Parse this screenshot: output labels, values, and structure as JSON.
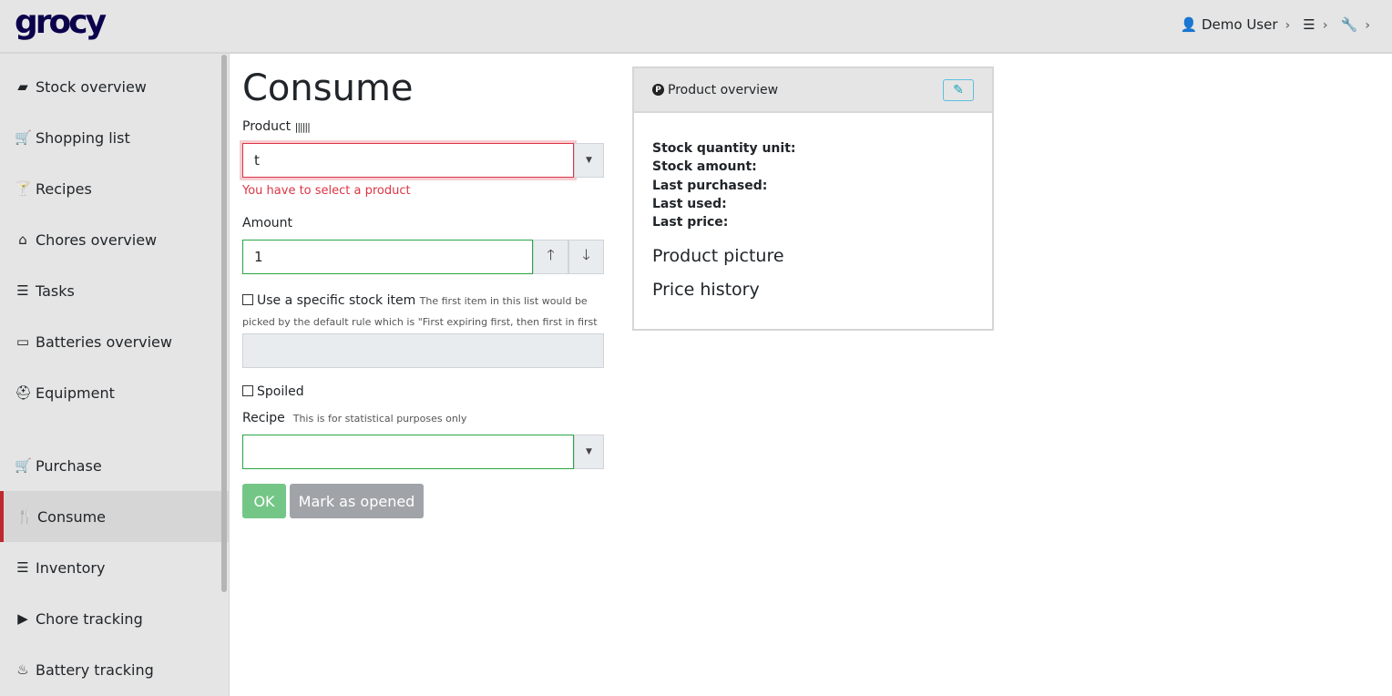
{
  "header": {
    "logo": "grocy",
    "user": "Demo User"
  },
  "sidebar": {
    "items": [
      {
        "label": "Stock overview",
        "icon": "box-icon",
        "glyph": "▰"
      },
      {
        "label": "Shopping list",
        "icon": "cart-icon",
        "glyph": "🛒"
      },
      {
        "label": "Recipes",
        "icon": "cocktail-icon",
        "glyph": "🍸"
      },
      {
        "label": "Chores overview",
        "icon": "home-icon",
        "glyph": "⌂"
      },
      {
        "label": "Tasks",
        "icon": "tasks-icon",
        "glyph": "☰"
      },
      {
        "label": "Batteries overview",
        "icon": "battery-icon",
        "glyph": "▭"
      },
      {
        "label": "Equipment",
        "icon": "toolbox-icon",
        "glyph": "⛑"
      },
      {
        "label": "Purchase",
        "icon": "cart-icon",
        "glyph": "🛒"
      },
      {
        "label": "Consume",
        "icon": "utensils-icon",
        "glyph": "🍴"
      },
      {
        "label": "Inventory",
        "icon": "list-icon",
        "glyph": "☰"
      },
      {
        "label": "Chore tracking",
        "icon": "play-icon",
        "glyph": "▶"
      },
      {
        "label": "Battery tracking",
        "icon": "fire-icon",
        "glyph": "♨"
      }
    ],
    "active": "Consume"
  },
  "main": {
    "title": "Consume",
    "product_label": "Product",
    "product_value": "t",
    "product_error": "You have to select a product",
    "amount_label": "Amount",
    "amount_value": "1",
    "specific_label": "Use a specific stock item",
    "specific_hint": "The first item in this list would be picked by the default rule which is \"First expiring first, then first in first out\"",
    "spoiled_label": "Spoiled",
    "recipe_label": "Recipe",
    "recipe_hint": "This is for statistical purposes only",
    "ok_label": "OK",
    "opened_label": "Mark as opened"
  },
  "card": {
    "title": "Product overview",
    "fields": [
      "Stock quantity unit:",
      "Stock amount:",
      "Last purchased:",
      "Last used:",
      "Last price:"
    ],
    "picture": "Product picture",
    "price_history": "Price history"
  },
  "colors": {
    "brand": "#0b024c",
    "active": "#c0282f",
    "error": "#dc3545",
    "valid": "#28a745",
    "ok": "#74c687",
    "secondary": "#a0a4a8"
  }
}
